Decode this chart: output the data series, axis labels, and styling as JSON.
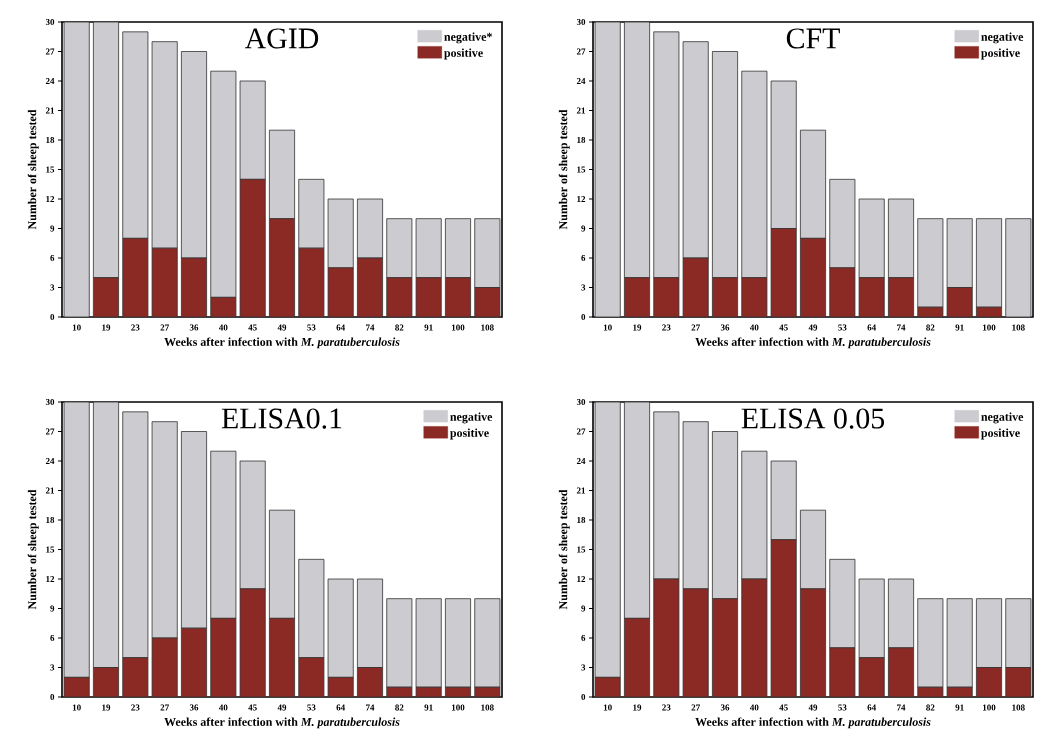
{
  "chart_data": [
    {
      "type": "bar",
      "title": "AGID",
      "xlabel": "Weeks after infection with *M. paratuberculosis*",
      "ylabel": "Number of sheep tested",
      "stacked": true,
      "legend": "top right",
      "ylim": [
        0,
        30
      ],
      "yticks": [
        0,
        3,
        6,
        9,
        12,
        15,
        18,
        21,
        24,
        27,
        30
      ],
      "categories": [
        "10",
        "19",
        "23",
        "27",
        "36",
        "40",
        "45",
        "49",
        "53",
        "64",
        "74",
        "82",
        "91",
        "100",
        "108"
      ],
      "series": [
        {
          "name": "positive",
          "color": "#8b2a24",
          "values": [
            0,
            4,
            8,
            7,
            6,
            2,
            14,
            10,
            7,
            5,
            6,
            4,
            4,
            4,
            3
          ]
        },
        {
          "name": "negative*",
          "color": "#cbcbd0",
          "values": [
            30,
            26,
            21,
            21,
            21,
            23,
            10,
            9,
            7,
            7,
            6,
            6,
            6,
            6,
            7
          ]
        }
      ]
    },
    {
      "type": "bar",
      "title": "CFT",
      "xlabel": "Weeks after infection with *M. paratuberculosis*",
      "ylabel": "Number of sheep tested",
      "stacked": true,
      "legend": "top right",
      "ylim": [
        0,
        30
      ],
      "yticks": [
        0,
        3,
        6,
        9,
        12,
        15,
        18,
        21,
        24,
        27,
        30
      ],
      "categories": [
        "10",
        "19",
        "23",
        "27",
        "36",
        "40",
        "45",
        "49",
        "53",
        "64",
        "74",
        "82",
        "91",
        "100",
        "108"
      ],
      "series": [
        {
          "name": "positive",
          "color": "#8b2a24",
          "values": [
            0,
            4,
            4,
            6,
            4,
            4,
            9,
            8,
            5,
            4,
            4,
            1,
            3,
            1,
            0
          ]
        },
        {
          "name": "negative",
          "color": "#cbcbd0",
          "values": [
            30,
            26,
            25,
            22,
            23,
            21,
            15,
            11,
            9,
            8,
            8,
            9,
            7,
            9,
            10
          ]
        }
      ]
    },
    {
      "type": "bar",
      "title": "ELISA0.1",
      "xlabel": "Weeks after infection with *M. paratuberculosis*",
      "ylabel": "Number of sheep tested",
      "stacked": true,
      "legend": "top right",
      "ylim": [
        0,
        30
      ],
      "yticks": [
        0,
        3,
        6,
        9,
        12,
        15,
        18,
        21,
        24,
        27,
        30
      ],
      "categories": [
        "10",
        "19",
        "23",
        "27",
        "36",
        "40",
        "45",
        "49",
        "53",
        "64",
        "74",
        "82",
        "91",
        "100",
        "108"
      ],
      "series": [
        {
          "name": "positive",
          "color": "#8b2a24",
          "values": [
            2,
            3,
            4,
            6,
            7,
            8,
            11,
            8,
            4,
            2,
            3,
            1,
            1,
            1,
            1
          ]
        },
        {
          "name": "negative",
          "color": "#cbcbd0",
          "values": [
            28,
            27,
            25,
            22,
            20,
            17,
            13,
            11,
            10,
            10,
            9,
            9,
            9,
            9,
            9
          ]
        }
      ]
    },
    {
      "type": "bar",
      "title": "ELISA 0.05",
      "xlabel": "Weeks after infection with *M. paratuberculosis*",
      "ylabel": "Number of sheep tested",
      "stacked": true,
      "legend": "top right",
      "ylim": [
        0,
        30
      ],
      "yticks": [
        0,
        3,
        6,
        9,
        12,
        15,
        18,
        21,
        24,
        27,
        30
      ],
      "categories": [
        "10",
        "19",
        "23",
        "27",
        "36",
        "40",
        "45",
        "49",
        "53",
        "64",
        "74",
        "82",
        "91",
        "100",
        "108"
      ],
      "series": [
        {
          "name": "positive",
          "color": "#8b2a24",
          "values": [
            2,
            8,
            12,
            11,
            10,
            12,
            16,
            11,
            5,
            4,
            5,
            1,
            1,
            3,
            3
          ]
        },
        {
          "name": "negative",
          "color": "#cbcbd0",
          "values": [
            28,
            22,
            17,
            17,
            17,
            13,
            8,
            8,
            9,
            8,
            7,
            9,
            9,
            7,
            7
          ]
        }
      ]
    }
  ]
}
